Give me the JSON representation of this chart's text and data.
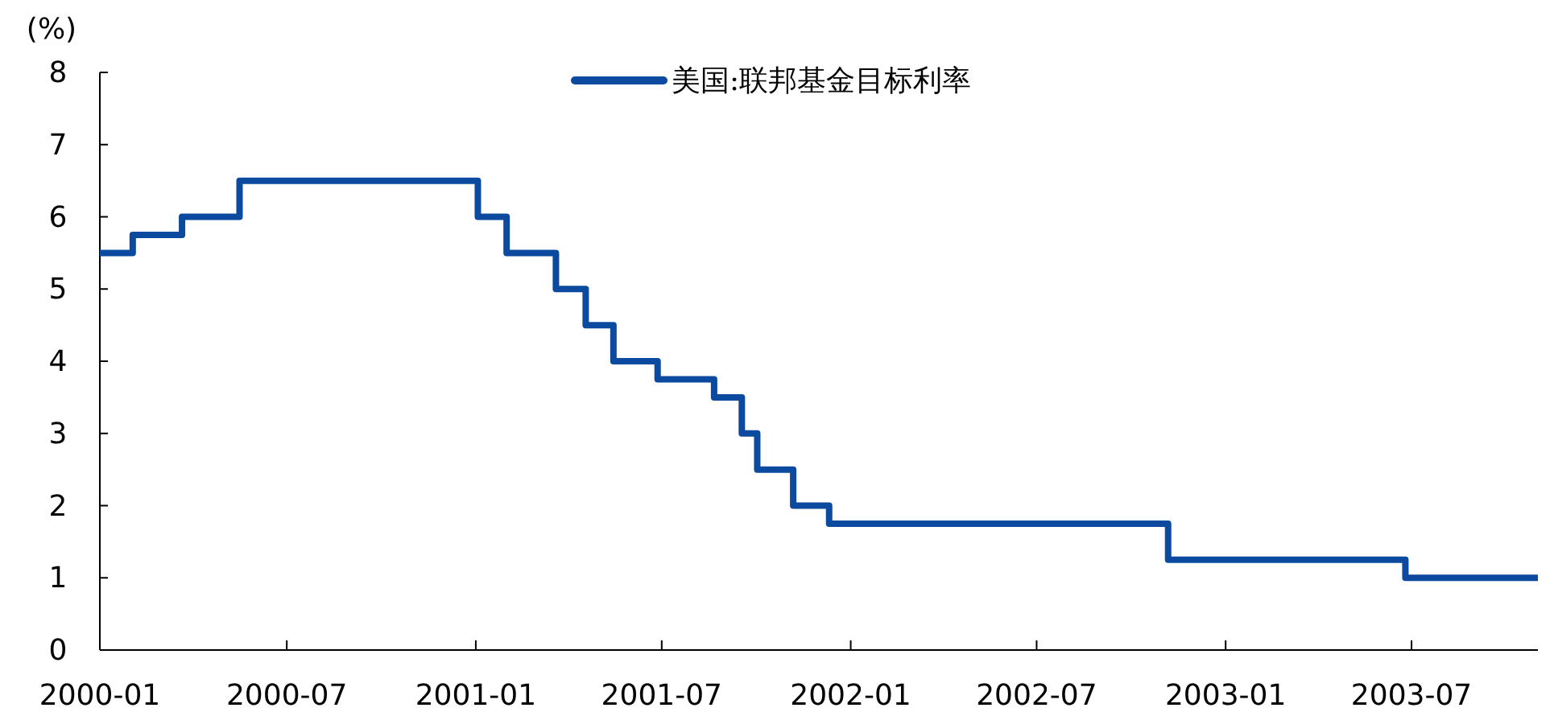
{
  "chart_data": {
    "type": "step",
    "ylabel": "(%)",
    "xlim": [
      "2000-01",
      "2003-11"
    ],
    "ylim": [
      0,
      8
    ],
    "yticks": [
      0,
      1,
      2,
      3,
      4,
      5,
      6,
      7,
      8
    ],
    "xticks": [
      "2000-01",
      "2000-07",
      "2001-01",
      "2001-07",
      "2002-01",
      "2002-07",
      "2003-01",
      "2003-07"
    ],
    "legend": "top",
    "grid": false,
    "series": [
      {
        "name": "美国:联邦基金目标利率",
        "color": "#0b4a9e",
        "x": [
          "2000-01-01",
          "2000-02-02",
          "2000-03-21",
          "2000-05-16",
          "2001-01-03",
          "2001-01-31",
          "2001-03-20",
          "2001-04-18",
          "2001-05-15",
          "2001-06-27",
          "2001-08-21",
          "2001-09-17",
          "2001-10-02",
          "2001-11-06",
          "2001-12-11",
          "2002-11-06",
          "2003-06-25",
          "2003-11-01"
        ],
        "values": [
          5.5,
          5.75,
          6,
          6.5,
          6,
          5.5,
          5,
          4.5,
          4,
          3.75,
          3.5,
          3,
          2.5,
          2,
          1.75,
          1.25,
          1,
          1
        ]
      }
    ]
  }
}
